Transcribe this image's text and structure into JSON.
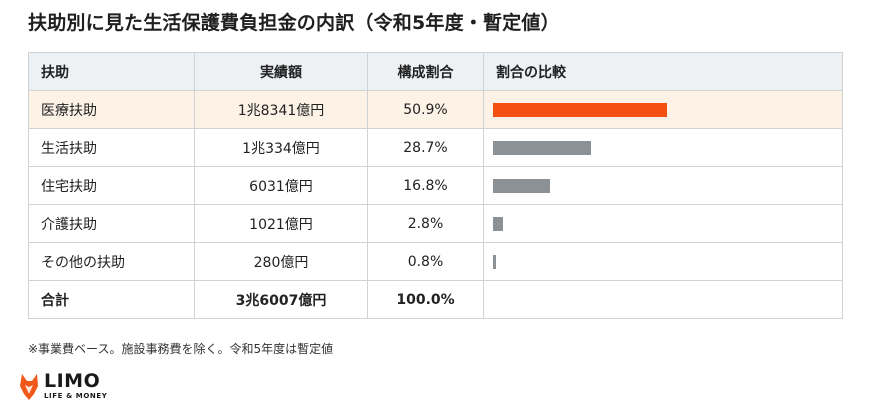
{
  "title": "扶助別に見た生活保護費負担金の内訳（令和5年度・暫定値）",
  "table": {
    "headers": [
      "扶助",
      "実績額",
      "構成割合",
      "割合の比較"
    ],
    "rows": [
      {
        "name": "医療扶助",
        "amount": "1兆8341億円",
        "share_text": "50.9%",
        "share": 50.9,
        "highlight": true
      },
      {
        "name": "生活扶助",
        "amount": "1兆334億円",
        "share_text": "28.7%",
        "share": 28.7,
        "highlight": false
      },
      {
        "name": "住宅扶助",
        "amount": "6031億円",
        "share_text": "16.8%",
        "share": 16.8,
        "highlight": false
      },
      {
        "name": "介護扶助",
        "amount": "1021億円",
        "share_text": "2.8%",
        "share": 2.8,
        "highlight": false
      },
      {
        "name": "その他の扶助",
        "amount": "280億円",
        "share_text": "0.8%",
        "share": 0.8,
        "highlight": false
      }
    ],
    "total": {
      "name": "合計",
      "amount": "3兆6007億円",
      "share_text": "100.0%"
    }
  },
  "note": "※事業費ベース。施設事務費を除く。令和5年度は暫定値",
  "logo": {
    "main": "LIMO",
    "sub": "LIFE & MONEY"
  },
  "colors": {
    "highlight_bar": "#f4500f",
    "bar": "#8c9196",
    "highlight_row": "#fcf2e6",
    "logo_accent": "#f0581a"
  }
}
